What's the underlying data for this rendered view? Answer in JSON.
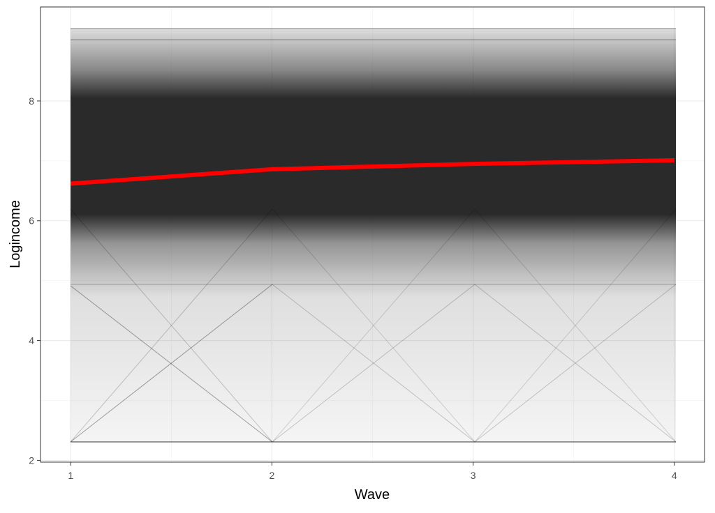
{
  "chart_data": {
    "type": "line",
    "x_label": "Wave",
    "y_label": "Logincome",
    "x": [
      1,
      2,
      3,
      4
    ],
    "series": [
      {
        "color": "#ff0000",
        "values": [
          6.62,
          6.86,
          6.95,
          7.01
        ]
      }
    ],
    "xlim": [
      0.85,
      4.15
    ],
    "ylim": [
      1.97,
      9.57
    ],
    "xticks": [
      1,
      2,
      3,
      4
    ],
    "yticks": [
      2,
      4,
      6,
      8
    ],
    "grid": true
  }
}
